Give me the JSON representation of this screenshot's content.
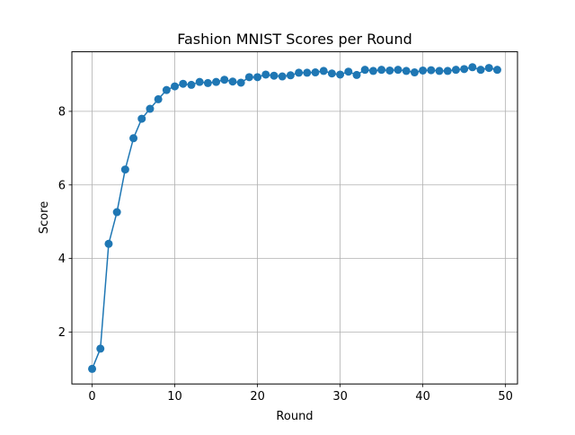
{
  "chart_data": {
    "type": "line",
    "title": "Fashion MNIST Scores per Round",
    "xlabel": "Round",
    "ylabel": "Score",
    "xlim": [
      -2.45,
      51.45
    ],
    "ylim": [
      0.59,
      9.62
    ],
    "xticks": [
      0,
      10,
      20,
      30,
      40,
      50
    ],
    "yticks": [
      2,
      4,
      6,
      8
    ],
    "grid": true,
    "line_color": "#1f77b4",
    "series": [
      {
        "x": [
          0,
          1,
          2,
          3,
          4,
          5,
          6,
          7,
          8,
          9,
          10,
          11,
          12,
          13,
          14,
          15,
          16,
          17,
          18,
          19,
          20,
          21,
          22,
          23,
          24,
          25,
          26,
          27,
          28,
          29,
          30,
          31,
          32,
          33,
          34,
          35,
          36,
          37,
          38,
          39,
          40,
          41,
          42,
          43,
          44,
          45,
          46,
          47,
          48,
          49
        ],
        "y": [
          1.0,
          1.55,
          4.4,
          5.26,
          6.42,
          7.27,
          7.8,
          8.07,
          8.33,
          8.58,
          8.68,
          8.75,
          8.72,
          8.8,
          8.77,
          8.8,
          8.86,
          8.81,
          8.78,
          8.93,
          8.93,
          9.0,
          8.97,
          8.95,
          8.98,
          9.05,
          9.05,
          9.06,
          9.1,
          9.03,
          9.0,
          9.08,
          8.99,
          9.13,
          9.1,
          9.13,
          9.11,
          9.13,
          9.1,
          9.06,
          9.11,
          9.12,
          9.1,
          9.1,
          9.13,
          9.15,
          9.2,
          9.13,
          9.18,
          9.13
        ]
      }
    ]
  }
}
